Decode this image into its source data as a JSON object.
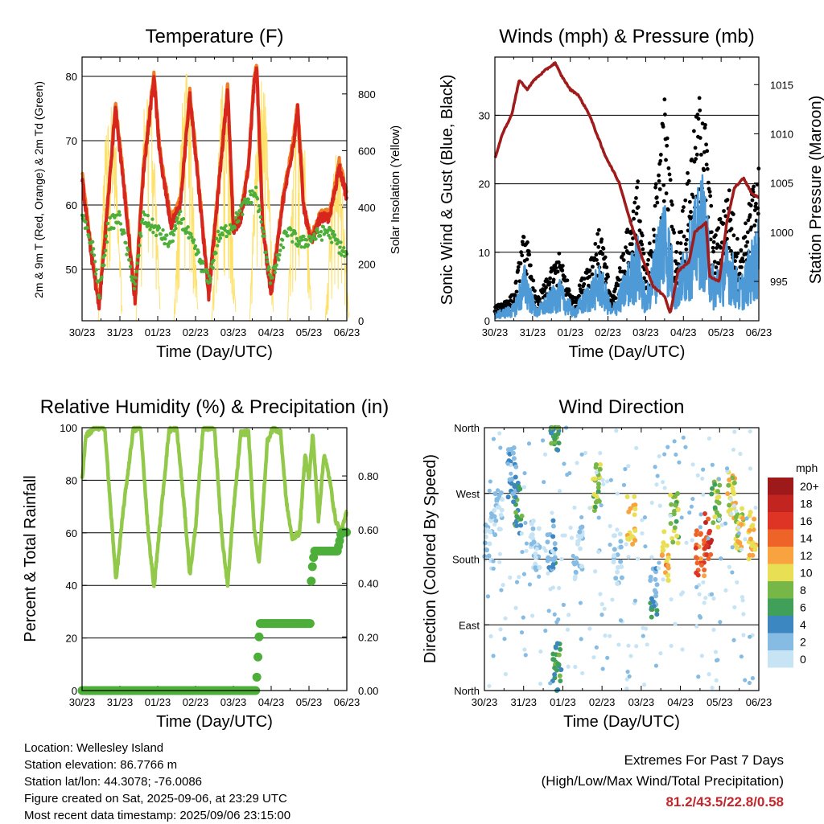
{
  "colors": {
    "red": "#d7261e",
    "orange": "#f07e26",
    "green": "#4daf3a",
    "yellow": "#fde16a",
    "maroon": "#a01b1b",
    "blue": "#4d9ad6",
    "black": "#000000",
    "rh_green": "#92c94a",
    "extremes": "#c0272d"
  },
  "chart_data": [
    {
      "id": "temperature",
      "type": "line",
      "title": "Temperature (F)",
      "xlabel": "Time (Day/UTC)",
      "ylabel": "2m & 9m T (Red, Orange) & 2m Td (Green)",
      "y2label": "Solar Insolation (Yellow)",
      "xticks": [
        "30/23",
        "31/23",
        "01/23",
        "02/23",
        "03/23",
        "04/23",
        "05/23",
        "06/23"
      ],
      "xlim": [
        0,
        7
      ],
      "ylim": [
        42,
        83
      ],
      "yticks": [
        50,
        60,
        70,
        80
      ],
      "y2lim": [
        0,
        930
      ],
      "y2ticks": [
        0,
        200,
        400,
        600,
        800
      ],
      "gridlines": [
        50,
        60,
        70,
        80
      ],
      "daily_temp": [
        {
          "t": 0.0,
          "v": 64
        },
        {
          "t": 0.25,
          "v": 52
        },
        {
          "t": 0.45,
          "v": 44
        },
        {
          "t": 0.72,
          "v": 63
        },
        {
          "t": 0.88,
          "v": 75
        },
        {
          "t": 1.05,
          "v": 66
        },
        {
          "t": 1.4,
          "v": 45
        },
        {
          "t": 1.62,
          "v": 65
        },
        {
          "t": 1.9,
          "v": 80
        },
        {
          "t": 2.05,
          "v": 68
        },
        {
          "t": 2.35,
          "v": 57
        },
        {
          "t": 2.6,
          "v": 60
        },
        {
          "t": 2.85,
          "v": 77
        },
        {
          "t": 3.0,
          "v": 68
        },
        {
          "t": 3.35,
          "v": 46
        },
        {
          "t": 3.6,
          "v": 62
        },
        {
          "t": 3.85,
          "v": 78
        },
        {
          "t": 4.0,
          "v": 56
        },
        {
          "t": 4.2,
          "v": 58
        },
        {
          "t": 4.4,
          "v": 66
        },
        {
          "t": 4.55,
          "v": 79
        },
        {
          "t": 4.62,
          "v": 81
        },
        {
          "t": 4.78,
          "v": 56
        },
        {
          "t": 5.0,
          "v": 46
        },
        {
          "t": 5.3,
          "v": 60
        },
        {
          "t": 5.6,
          "v": 70
        },
        {
          "t": 5.7,
          "v": 75
        },
        {
          "t": 5.85,
          "v": 60
        },
        {
          "t": 6.05,
          "v": 54
        },
        {
          "t": 6.3,
          "v": 58
        },
        {
          "t": 6.55,
          "v": 58
        },
        {
          "t": 6.8,
          "v": 66
        },
        {
          "t": 7.0,
          "v": 61
        }
      ],
      "daily_dewpoint": [
        {
          "t": 0.0,
          "v": 58
        },
        {
          "t": 0.3,
          "v": 53
        },
        {
          "t": 0.45,
          "v": 46
        },
        {
          "t": 0.7,
          "v": 57
        },
        {
          "t": 1.0,
          "v": 58
        },
        {
          "t": 1.4,
          "v": 47
        },
        {
          "t": 1.6,
          "v": 58
        },
        {
          "t": 2.0,
          "v": 56
        },
        {
          "t": 2.3,
          "v": 54
        },
        {
          "t": 2.6,
          "v": 58
        },
        {
          "t": 3.0,
          "v": 53
        },
        {
          "t": 3.35,
          "v": 48
        },
        {
          "t": 3.6,
          "v": 55
        },
        {
          "t": 4.0,
          "v": 57
        },
        {
          "t": 4.4,
          "v": 61
        },
        {
          "t": 4.6,
          "v": 62
        },
        {
          "t": 5.0,
          "v": 48
        },
        {
          "t": 5.4,
          "v": 56
        },
        {
          "t": 5.8,
          "v": 54
        },
        {
          "t": 6.1,
          "v": 55
        },
        {
          "t": 6.5,
          "v": 56
        },
        {
          "t": 7.0,
          "v": 52
        }
      ],
      "solar_peak_days": [
        0.75,
        1.75,
        2.75,
        3.75,
        4.75,
        5.75,
        6.75
      ],
      "solar_peak_values": [
        830,
        900,
        880,
        860,
        870,
        820,
        600
      ]
    },
    {
      "id": "winds",
      "type": "scatter",
      "title": "Winds (mph) & Pressure (mb)",
      "xlabel": "Time (Day/UTC)",
      "ylabel": "Sonic Wind & Gust (Blue, Black)",
      "y2label": "Station Pressure (Maroon)",
      "xticks": [
        "30/23",
        "31/23",
        "01/23",
        "02/23",
        "03/23",
        "04/23",
        "05/23",
        "06/23"
      ],
      "xlim": [
        0,
        7
      ],
      "ylim": [
        0,
        38.5
      ],
      "yticks": [
        0,
        10,
        20,
        30
      ],
      "y2lim": [
        991.0,
        1017.8
      ],
      "y2ticks": [
        995,
        1000,
        1005,
        1010,
        1015
      ],
      "gridlines": [
        10,
        20,
        30
      ],
      "pressure": [
        {
          "t": 0.0,
          "v": 1007.5
        },
        {
          "t": 0.2,
          "v": 1010
        },
        {
          "t": 0.45,
          "v": 1012
        },
        {
          "t": 0.65,
          "v": 1015.5
        },
        {
          "t": 0.85,
          "v": 1014.5
        },
        {
          "t": 1.05,
          "v": 1015.5
        },
        {
          "t": 1.35,
          "v": 1016.5
        },
        {
          "t": 1.6,
          "v": 1017.2
        },
        {
          "t": 1.75,
          "v": 1016
        },
        {
          "t": 2.0,
          "v": 1014.5
        },
        {
          "t": 2.2,
          "v": 1014
        },
        {
          "t": 2.5,
          "v": 1012
        },
        {
          "t": 2.9,
          "v": 1008
        },
        {
          "t": 3.3,
          "v": 1005
        },
        {
          "t": 3.6,
          "v": 1001
        },
        {
          "t": 3.9,
          "v": 997.5
        },
        {
          "t": 4.2,
          "v": 994.5
        },
        {
          "t": 4.5,
          "v": 993.5
        },
        {
          "t": 4.65,
          "v": 991.7
        },
        {
          "t": 4.85,
          "v": 996
        },
        {
          "t": 5.15,
          "v": 997
        },
        {
          "t": 5.3,
          "v": 1000
        },
        {
          "t": 5.6,
          "v": 1001
        },
        {
          "t": 5.7,
          "v": 995.5
        },
        {
          "t": 5.95,
          "v": 995
        },
        {
          "t": 6.15,
          "v": 1001
        },
        {
          "t": 6.35,
          "v": 1004.5
        },
        {
          "t": 6.6,
          "v": 1005.5
        },
        {
          "t": 6.8,
          "v": 1004
        },
        {
          "t": 7.0,
          "v": 1003.5
        }
      ],
      "gust_envelope": [
        {
          "t": 0.0,
          "v": 2
        },
        {
          "t": 0.5,
          "v": 4
        },
        {
          "t": 0.8,
          "v": 14
        },
        {
          "t": 1.1,
          "v": 3
        },
        {
          "t": 1.7,
          "v": 10
        },
        {
          "t": 2.1,
          "v": 3
        },
        {
          "t": 2.8,
          "v": 14
        },
        {
          "t": 3.1,
          "v": 3
        },
        {
          "t": 3.8,
          "v": 21
        },
        {
          "t": 4.0,
          "v": 6
        },
        {
          "t": 4.5,
          "v": 33
        },
        {
          "t": 4.8,
          "v": 10
        },
        {
          "t": 5.5,
          "v": 36
        },
        {
          "t": 5.8,
          "v": 12
        },
        {
          "t": 6.2,
          "v": 20
        },
        {
          "t": 6.5,
          "v": 10
        },
        {
          "t": 7.0,
          "v": 25
        }
      ]
    },
    {
      "id": "humidity",
      "type": "line",
      "title": "Relative Humidity (%) & Precipitation (in)",
      "xlabel": "Time (Day/UTC)",
      "ylabel": "Percent & Total Rainfall",
      "xticks": [
        "30/23",
        "31/23",
        "01/23",
        "02/23",
        "03/23",
        "04/23",
        "05/23",
        "06/23"
      ],
      "xlim": [
        0,
        7
      ],
      "ylim": [
        0,
        100
      ],
      "yticks": [
        0,
        20,
        40,
        60,
        80,
        100
      ],
      "y2lim": [
        0,
        0.98
      ],
      "y2ticks": [
        "0.00",
        "0.20",
        "0.40",
        "0.60",
        "0.80"
      ],
      "gridlines": [
        20,
        40,
        60,
        80
      ],
      "rh": [
        {
          "t": 0.0,
          "v": 80
        },
        {
          "t": 0.1,
          "v": 97
        },
        {
          "t": 0.35,
          "v": 100
        },
        {
          "t": 0.6,
          "v": 100
        },
        {
          "t": 0.75,
          "v": 70
        },
        {
          "t": 0.9,
          "v": 42
        },
        {
          "t": 1.1,
          "v": 70
        },
        {
          "t": 1.35,
          "v": 99
        },
        {
          "t": 1.55,
          "v": 100
        },
        {
          "t": 1.75,
          "v": 60
        },
        {
          "t": 1.9,
          "v": 39
        },
        {
          "t": 2.05,
          "v": 62
        },
        {
          "t": 2.3,
          "v": 99
        },
        {
          "t": 2.5,
          "v": 100
        },
        {
          "t": 2.7,
          "v": 70
        },
        {
          "t": 2.85,
          "v": 44
        },
        {
          "t": 3.0,
          "v": 62
        },
        {
          "t": 3.2,
          "v": 100
        },
        {
          "t": 3.5,
          "v": 100
        },
        {
          "t": 3.7,
          "v": 58
        },
        {
          "t": 3.85,
          "v": 40
        },
        {
          "t": 4.0,
          "v": 68
        },
        {
          "t": 4.2,
          "v": 98
        },
        {
          "t": 4.4,
          "v": 98
        },
        {
          "t": 4.55,
          "v": 62
        },
        {
          "t": 4.68,
          "v": 48
        },
        {
          "t": 4.9,
          "v": 95
        },
        {
          "t": 5.05,
          "v": 100
        },
        {
          "t": 5.25,
          "v": 98
        },
        {
          "t": 5.4,
          "v": 72
        },
        {
          "t": 5.55,
          "v": 58
        },
        {
          "t": 5.75,
          "v": 60
        },
        {
          "t": 5.9,
          "v": 90
        },
        {
          "t": 6.0,
          "v": 80
        },
        {
          "t": 6.1,
          "v": 98
        },
        {
          "t": 6.25,
          "v": 65
        },
        {
          "t": 6.4,
          "v": 90
        },
        {
          "t": 6.55,
          "v": 80
        },
        {
          "t": 6.7,
          "v": 65
        },
        {
          "t": 6.85,
          "v": 60
        },
        {
          "t": 7.0,
          "v": 68
        }
      ],
      "precip": [
        {
          "t": 0.0,
          "v": 0.0
        },
        {
          "t": 4.6,
          "v": 0.0
        },
        {
          "t": 4.62,
          "v": 0.05
        },
        {
          "t": 4.66,
          "v": 0.15
        },
        {
          "t": 4.7,
          "v": 0.25
        },
        {
          "t": 6.05,
          "v": 0.25
        },
        {
          "t": 6.0,
          "v": 0.3
        },
        {
          "t": 6.1,
          "v": 0.48
        },
        {
          "t": 6.15,
          "v": 0.52
        },
        {
          "t": 6.75,
          "v": 0.52
        },
        {
          "t": 6.8,
          "v": 0.55
        },
        {
          "t": 6.85,
          "v": 0.59
        },
        {
          "t": 7.0,
          "v": 0.59
        }
      ]
    },
    {
      "id": "direction",
      "type": "scatter",
      "title": "Wind Direction",
      "xlabel": "Time (Day/UTC)",
      "ylabel": "Direction (Colored By Speed)",
      "xticks": [
        "30/23",
        "31/23",
        "01/23",
        "02/23",
        "03/23",
        "04/23",
        "05/23",
        "06/23"
      ],
      "xlim": [
        0,
        7
      ],
      "ylim": [
        0,
        360
      ],
      "ytick_labels": [
        "North",
        "East",
        "South",
        "West",
        "North"
      ],
      "ytick_values": [
        0,
        90,
        180,
        270,
        360
      ],
      "gridlines": [
        90,
        180,
        270
      ],
      "legend_title": "mph",
      "legend_labels": [
        "20+",
        "18",
        "16",
        "14",
        "12",
        "10",
        "8",
        "6",
        "4",
        "2",
        "0"
      ],
      "legend_colors": [
        "#9e1a1a",
        "#c2241f",
        "#dd3426",
        "#ee6327",
        "#f8a340",
        "#e9df54",
        "#76b748",
        "#40a05a",
        "#3c86c2",
        "#86bce3",
        "#c7e4f5"
      ],
      "clusters": [
        {
          "t": 0.1,
          "dir": 210,
          "spd": 1
        },
        {
          "t": 0.35,
          "dir": 240,
          "spd": 1
        },
        {
          "t": 0.85,
          "dir": 250,
          "spd": 6
        },
        {
          "t": 0.7,
          "dir": 300,
          "spd": 3
        },
        {
          "t": 1.3,
          "dir": 200,
          "spd": 1
        },
        {
          "t": 1.7,
          "dir": 200,
          "spd": 4
        },
        {
          "t": 1.85,
          "dir": 30,
          "spd": 6
        },
        {
          "t": 1.8,
          "dir": 360,
          "spd": 6
        },
        {
          "t": 2.4,
          "dir": 190,
          "spd": 1
        },
        {
          "t": 2.85,
          "dir": 280,
          "spd": 8
        },
        {
          "t": 3.4,
          "dir": 180,
          "spd": 1
        },
        {
          "t": 3.75,
          "dir": 235,
          "spd": 11
        },
        {
          "t": 4.3,
          "dir": 135,
          "spd": 4
        },
        {
          "t": 4.6,
          "dir": 185,
          "spd": 12
        },
        {
          "t": 4.85,
          "dir": 235,
          "spd": 8
        },
        {
          "t": 5.5,
          "dir": 185,
          "spd": 14
        },
        {
          "t": 5.7,
          "dir": 215,
          "spd": 16
        },
        {
          "t": 5.9,
          "dir": 255,
          "spd": 8
        },
        {
          "t": 6.3,
          "dir": 265,
          "spd": 10
        },
        {
          "t": 6.5,
          "dir": 225,
          "spd": 10
        },
        {
          "t": 6.85,
          "dir": 210,
          "spd": 12
        }
      ]
    }
  ],
  "info": {
    "location": "Location: Wellesley Island",
    "elevation": "Station elevation: 86.7766 m",
    "latlon": "Station lat/lon: 44.3078; -76.0086",
    "created": "Figure created on Sat, 2025-09-06, at 23:29 UTC",
    "recent": "Most recent data timestamp: 2025/09/06 23:15:00"
  },
  "extremes": {
    "heading": "Extremes For Past 7 Days",
    "subheading": "(High/Low/Max Wind/Total Precipitation)",
    "values": "81.2/43.5/22.8/0.58"
  }
}
